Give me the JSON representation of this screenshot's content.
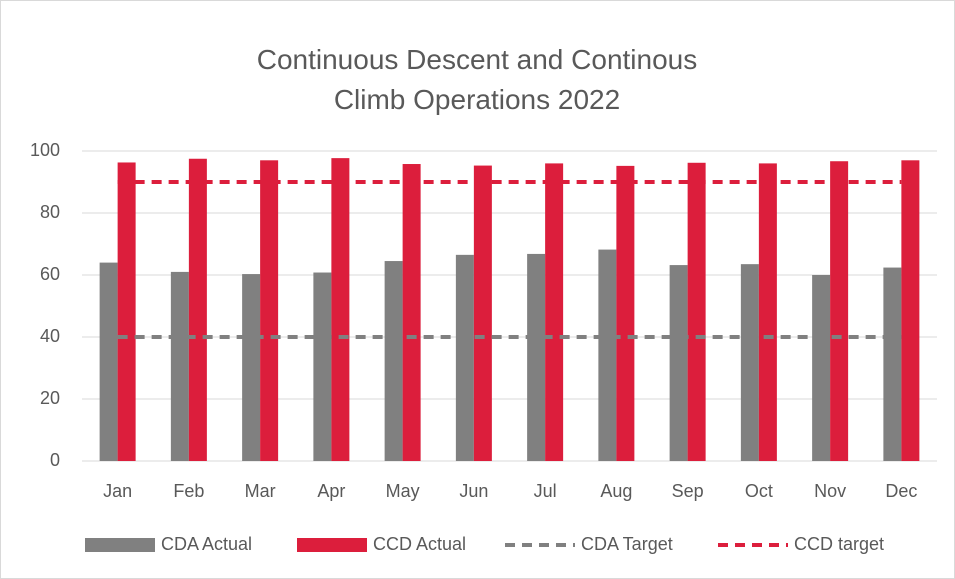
{
  "chart_data": {
    "type": "bar",
    "title": "Continuous Descent and Continous Climb Operations 2022",
    "categories": [
      "Jan",
      "Feb",
      "Mar",
      "Apr",
      "May",
      "Jun",
      "Jul",
      "Aug",
      "Sep",
      "Oct",
      "Nov",
      "Dec"
    ],
    "series": [
      {
        "name": "CDA Actual",
        "color": "#808080",
        "type": "bar",
        "values": [
          64,
          61,
          60.3,
          60.8,
          64.5,
          66.5,
          66.8,
          68.2,
          63.2,
          63.5,
          60,
          62.4
        ]
      },
      {
        "name": "CCD Actual",
        "color": "#dc1e3c",
        "type": "bar",
        "values": [
          96.3,
          97.5,
          97,
          97.7,
          95.8,
          95.3,
          96,
          95.2,
          96.2,
          96,
          96.7,
          97
        ]
      },
      {
        "name": "CDA Target",
        "color": "#808080",
        "type": "line",
        "dashed": true,
        "values": [
          40,
          40,
          40,
          40,
          40,
          40,
          40,
          40,
          40,
          40,
          40,
          40
        ]
      },
      {
        "name": "CCD target",
        "color": "#dc1e3c",
        "type": "line",
        "dashed": true,
        "values": [
          90,
          90,
          90,
          90,
          90,
          90,
          90,
          90,
          90,
          90,
          90,
          90
        ]
      }
    ],
    "ylim": [
      0,
      100
    ],
    "yticks": [
      0,
      20,
      40,
      60,
      80,
      100
    ],
    "grid": true,
    "legend": "bottom"
  }
}
